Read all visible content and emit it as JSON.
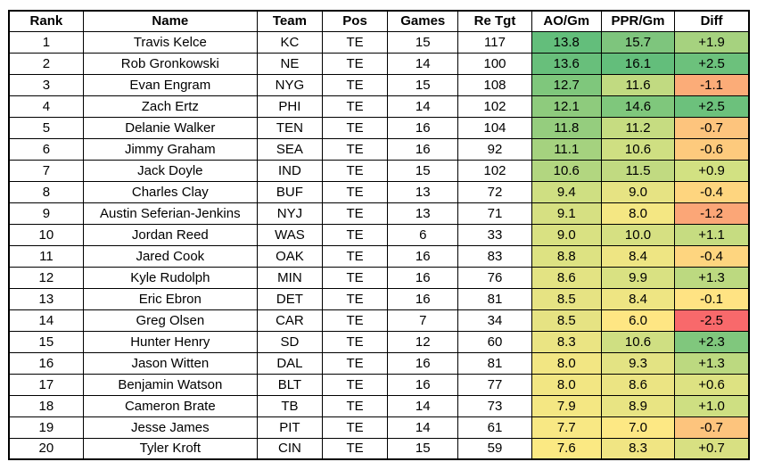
{
  "headers": [
    "Rank",
    "Name",
    "Team",
    "Pos",
    "Games",
    "Re Tgt",
    "AO/Gm",
    "PPR/Gm",
    "Diff"
  ],
  "rows": [
    {
      "rank": "1",
      "name": "Travis Kelce",
      "team": "KC",
      "pos": "TE",
      "games": "15",
      "re_tgt": "117",
      "ao_gm": "13.8",
      "ppr_gm": "15.7",
      "diff": "+1.9",
      "colors": {
        "ao": "#63be7b",
        "ppr": "#7ec57d",
        "diff": "#a6d27f"
      }
    },
    {
      "rank": "2",
      "name": "Rob Gronkowski",
      "team": "NE",
      "pos": "TE",
      "games": "14",
      "re_tgt": "100",
      "ao_gm": "13.6",
      "ppr_gm": "16.1",
      "diff": "+2.5",
      "colors": {
        "ao": "#68bf7b",
        "ppr": "#63be7b",
        "diff": "#6cc17c"
      }
    },
    {
      "rank": "3",
      "name": "Evan Engram",
      "team": "NYG",
      "pos": "TE",
      "games": "15",
      "re_tgt": "108",
      "ao_gm": "12.7",
      "ppr_gm": "11.6",
      "diff": "-1.1",
      "colors": {
        "ao": "#7fc77c",
        "ppr": "#c1da81",
        "diff": "#fbac78"
      }
    },
    {
      "rank": "4",
      "name": "Zach Ertz",
      "team": "PHI",
      "pos": "TE",
      "games": "14",
      "re_tgt": "102",
      "ao_gm": "12.1",
      "ppr_gm": "14.6",
      "diff": "+2.5",
      "colors": {
        "ao": "#8ecb7d",
        "ppr": "#7fc77c",
        "diff": "#6cc17c"
      }
    },
    {
      "rank": "5",
      "name": "Delanie Walker",
      "team": "TEN",
      "pos": "TE",
      "games": "16",
      "re_tgt": "104",
      "ao_gm": "11.8",
      "ppr_gm": "11.2",
      "diff": "-0.7",
      "colors": {
        "ao": "#95cd7e",
        "ppr": "#c6dc81",
        "diff": "#fdc47d"
      }
    },
    {
      "rank": "6",
      "name": "Jimmy Graham",
      "team": "SEA",
      "pos": "TE",
      "games": "16",
      "re_tgt": "92",
      "ao_gm": "11.1",
      "ppr_gm": "10.6",
      "diff": "-0.6",
      "colors": {
        "ao": "#a5d27f",
        "ppr": "#cfdf82",
        "diff": "#fdca7d"
      }
    },
    {
      "rank": "7",
      "name": "Jack Doyle",
      "team": "IND",
      "pos": "TE",
      "games": "15",
      "re_tgt": "102",
      "ao_gm": "10.6",
      "ppr_gm": "11.5",
      "diff": "+0.9",
      "colors": {
        "ao": "#b2d680",
        "ppr": "#c1da81",
        "diff": "#d2e182"
      }
    },
    {
      "rank": "8",
      "name": "Charles Clay",
      "team": "BUF",
      "pos": "TE",
      "games": "13",
      "re_tgt": "72",
      "ao_gm": "9.4",
      "ppr_gm": "9.0",
      "diff": "-0.4",
      "colors": {
        "ao": "#cfdf82",
        "ppr": "#e6e383",
        "diff": "#fed57f"
      }
    },
    {
      "rank": "9",
      "name": "Austin Seferian-Jenkins",
      "team": "NYJ",
      "pos": "TE",
      "games": "13",
      "re_tgt": "71",
      "ao_gm": "9.1",
      "ppr_gm": "8.0",
      "diff": "-1.2",
      "colors": {
        "ao": "#d6e082",
        "ppr": "#f4e783",
        "diff": "#fba677"
      }
    },
    {
      "rank": "10",
      "name": "Jordan Reed",
      "team": "WAS",
      "pos": "TE",
      "games": "6",
      "re_tgt": "33",
      "ao_gm": "9.0",
      "ppr_gm": "10.0",
      "diff": "+1.1",
      "colors": {
        "ao": "#d9e182",
        "ppr": "#d6e082",
        "diff": "#c6dc81"
      }
    },
    {
      "rank": "11",
      "name": "Jared Cook",
      "team": "OAK",
      "pos": "TE",
      "games": "16",
      "re_tgt": "83",
      "ao_gm": "8.8",
      "ppr_gm": "8.4",
      "diff": "-0.4",
      "colors": {
        "ao": "#dde282",
        "ppr": "#eee583",
        "diff": "#fed57f"
      }
    },
    {
      "rank": "12",
      "name": "Kyle Rudolph",
      "team": "MIN",
      "pos": "TE",
      "games": "16",
      "re_tgt": "76",
      "ao_gm": "8.6",
      "ppr_gm": "9.9",
      "diff": "+1.3",
      "colors": {
        "ao": "#e3e383",
        "ppr": "#d9e182",
        "diff": "#bcd980"
      }
    },
    {
      "rank": "13",
      "name": "Eric Ebron",
      "team": "DET",
      "pos": "TE",
      "games": "16",
      "re_tgt": "81",
      "ao_gm": "8.5",
      "ppr_gm": "8.4",
      "diff": "-0.1",
      "colors": {
        "ao": "#e6e383",
        "ppr": "#eee583",
        "diff": "#ffe383"
      }
    },
    {
      "rank": "14",
      "name": "Greg Olsen",
      "team": "CAR",
      "pos": "TE",
      "games": "7",
      "re_tgt": "34",
      "ao_gm": "8.5",
      "ppr_gm": "6.0",
      "diff": "-2.5",
      "colors": {
        "ao": "#e6e383",
        "ppr": "#fee683",
        "diff": "#f8696b"
      }
    },
    {
      "rank": "15",
      "name": "Hunter Henry",
      "team": "SD",
      "pos": "TE",
      "games": "12",
      "re_tgt": "60",
      "ao_gm": "8.3",
      "ppr_gm": "10.6",
      "diff": "+2.3",
      "colors": {
        "ao": "#eae483",
        "ppr": "#cfdf82",
        "diff": "#80c77d"
      }
    },
    {
      "rank": "16",
      "name": "Jason Witten",
      "team": "DAL",
      "pos": "TE",
      "games": "16",
      "re_tgt": "81",
      "ao_gm": "8.0",
      "ppr_gm": "9.3",
      "diff": "+1.3",
      "colors": {
        "ao": "#f2e683",
        "ppr": "#e3e383",
        "diff": "#bcd980"
      }
    },
    {
      "rank": "17",
      "name": "Benjamin Watson",
      "team": "BLT",
      "pos": "TE",
      "games": "16",
      "re_tgt": "77",
      "ao_gm": "8.0",
      "ppr_gm": "8.6",
      "diff": "+0.6",
      "colors": {
        "ao": "#f2e683",
        "ppr": "#ebe483",
        "diff": "#dde282"
      }
    },
    {
      "rank": "18",
      "name": "Cameron Brate",
      "team": "TB",
      "pos": "TE",
      "games": "14",
      "re_tgt": "73",
      "ao_gm": "7.9",
      "ppr_gm": "8.9",
      "diff": "+1.0",
      "colors": {
        "ao": "#f4e783",
        "ppr": "#e8e483",
        "diff": "#cedf82"
      }
    },
    {
      "rank": "19",
      "name": "Jesse James",
      "team": "PIT",
      "pos": "TE",
      "games": "14",
      "re_tgt": "61",
      "ao_gm": "7.7",
      "ppr_gm": "7.0",
      "diff": "-0.7",
      "colors": {
        "ao": "#f8e884",
        "ppr": "#fde884",
        "diff": "#fdc47d"
      }
    },
    {
      "rank": "20",
      "name": "Tyler Kroft",
      "team": "CIN",
      "pos": "TE",
      "games": "15",
      "re_tgt": "59",
      "ao_gm": "7.6",
      "ppr_gm": "8.3",
      "diff": "+0.7",
      "colors": {
        "ao": "#fbe983",
        "ppr": "#f0e583",
        "diff": "#d8e082"
      }
    }
  ]
}
